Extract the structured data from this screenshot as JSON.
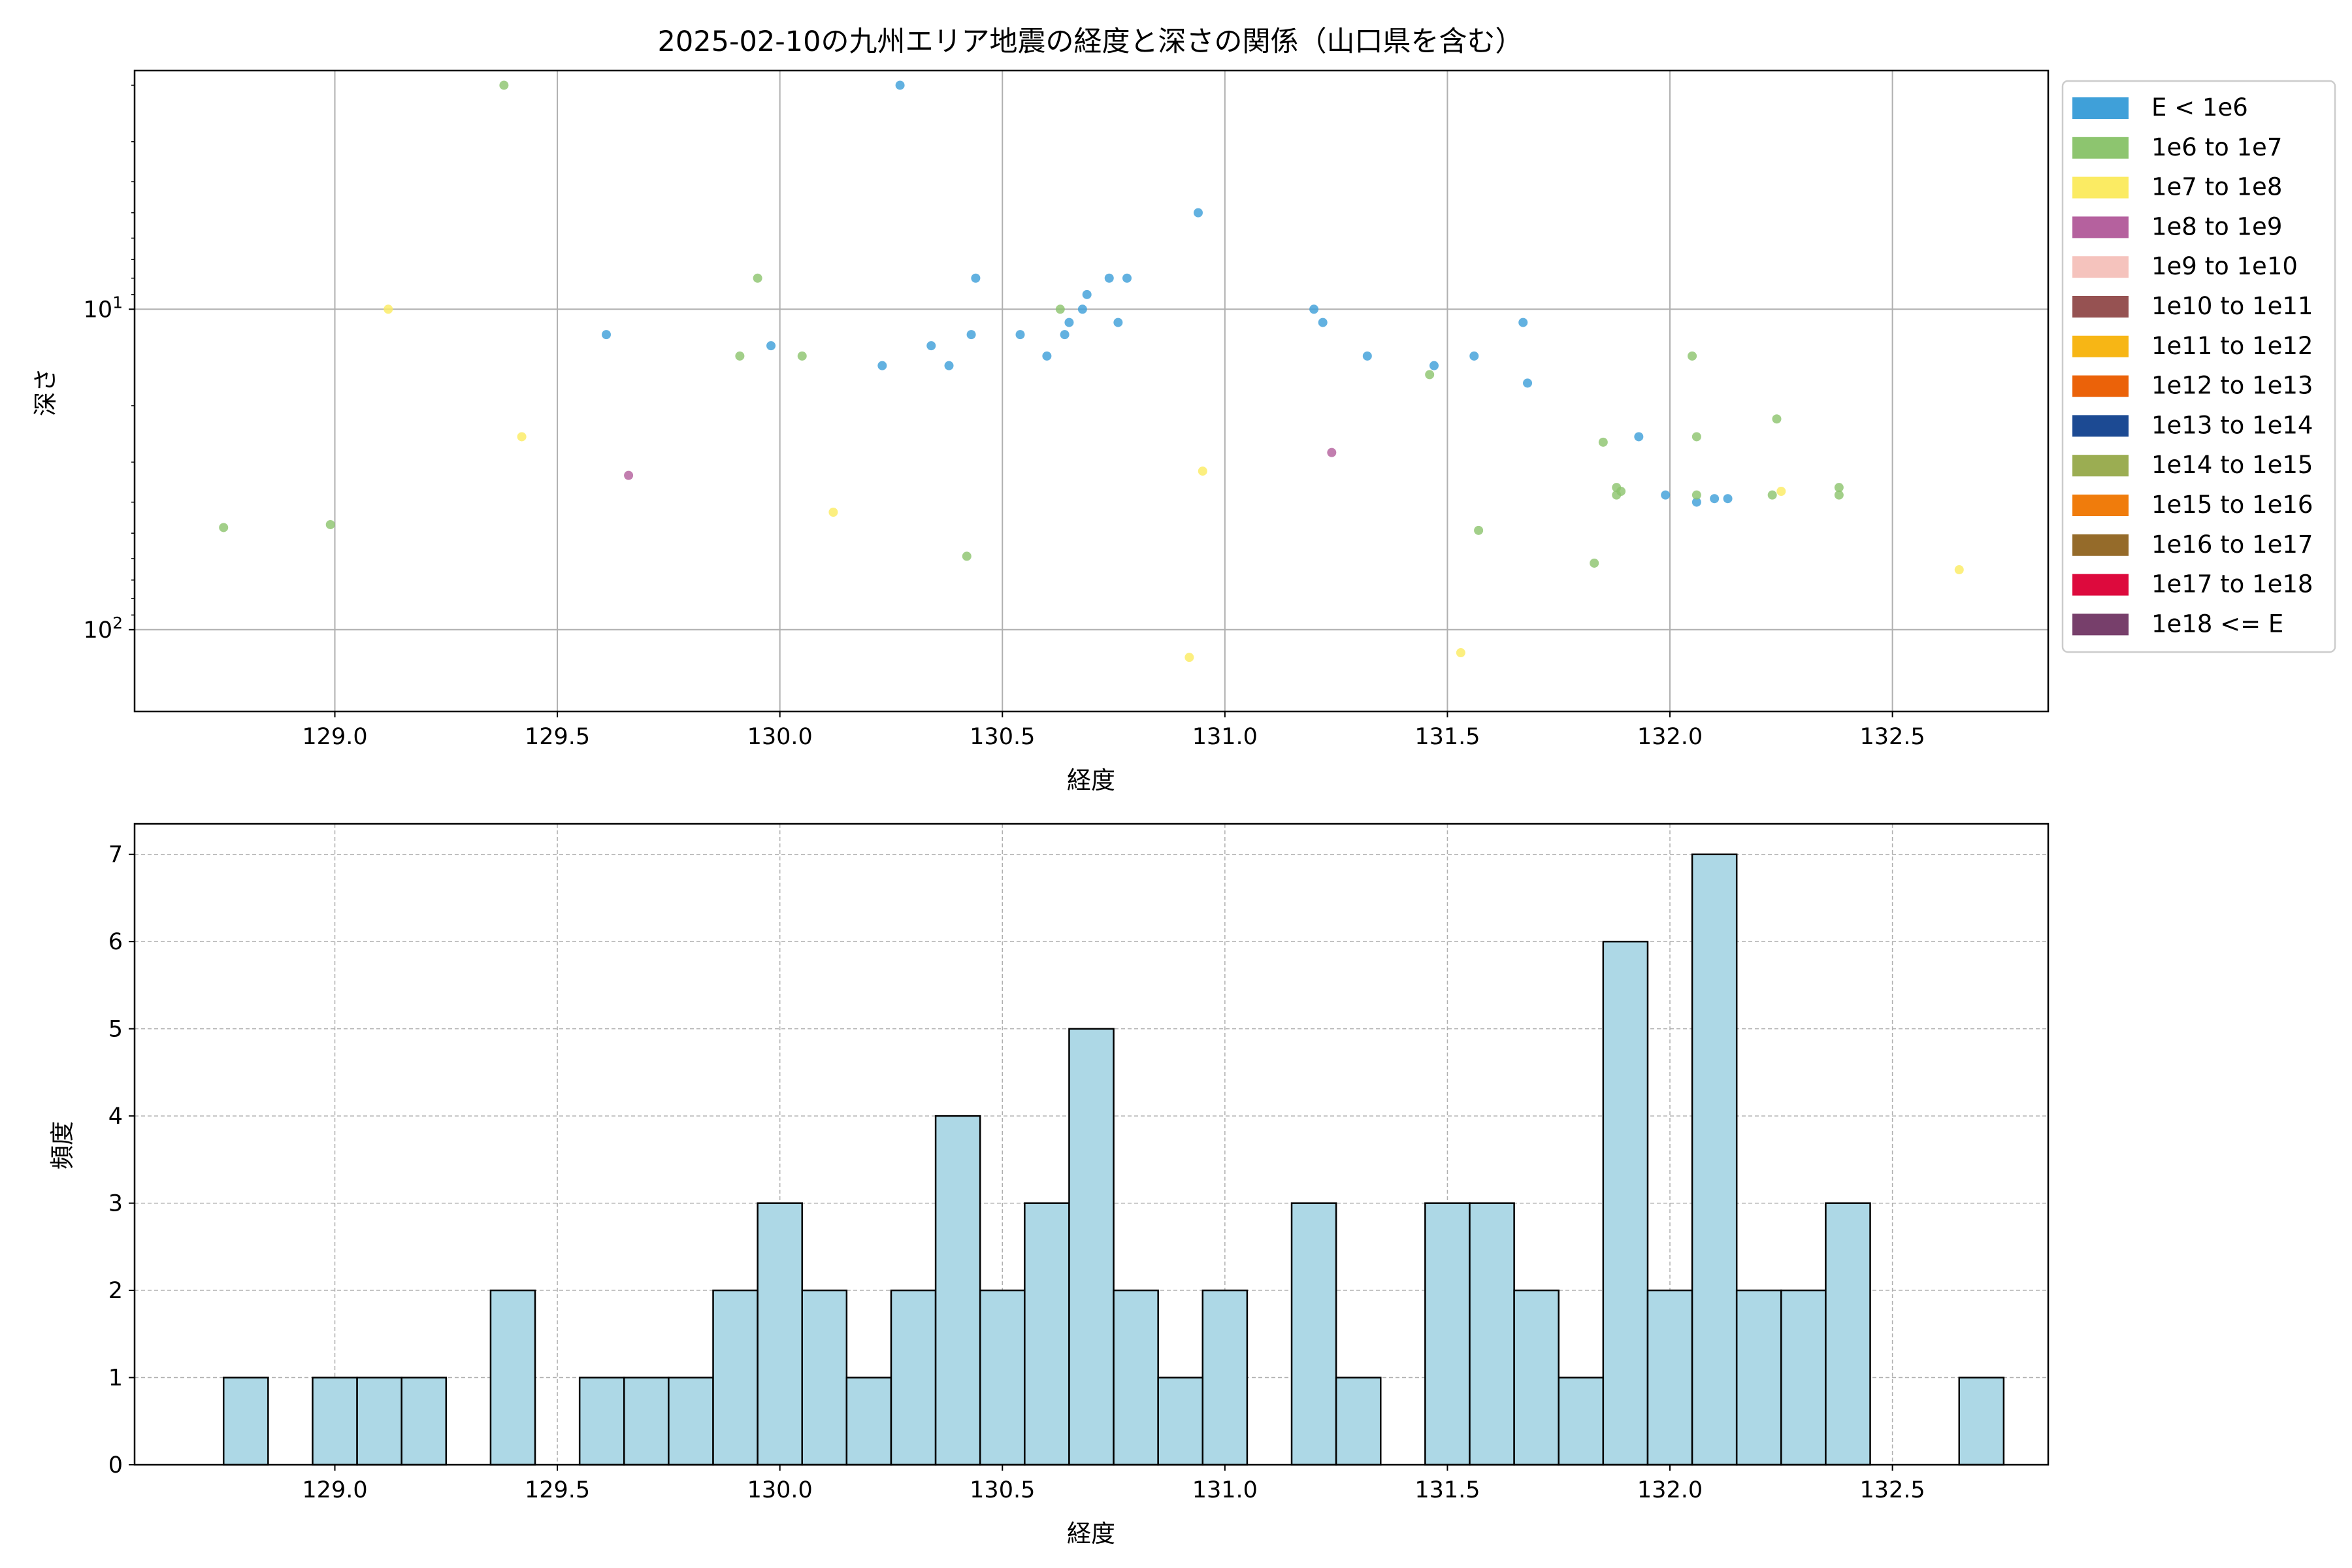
{
  "figure": {
    "title": "2025-02-10の九州エリア地震の経度と深さの関係（山口県を含む）"
  },
  "chart_data": [
    {
      "type": "scatter",
      "xlabel": "経度",
      "ylabel": "深さ",
      "xlim": [
        128.55,
        132.85
      ],
      "ylim": [
        1.8,
        180
      ],
      "y_scale": "log",
      "y_inverted": true,
      "grid": true,
      "x_ticks": [
        129.0,
        129.5,
        130.0,
        130.5,
        131.0,
        131.5,
        132.0,
        132.5
      ],
      "x_tick_labels": [
        "129.0",
        "129.5",
        "130.0",
        "130.5",
        "131.0",
        "131.5",
        "132.0",
        "132.5"
      ],
      "y_ticks": [
        10,
        100
      ],
      "y_tick_labels": [
        {
          "base": "10",
          "exp": "1"
        },
        {
          "base": "10",
          "exp": "2"
        }
      ],
      "legend": {
        "placement": "outside-right",
        "entries": [
          {
            "label": "E < 1e6",
            "color": "#3fa0d9"
          },
          {
            "label": "1e6 to 1e7",
            "color": "#8dc56f"
          },
          {
            "label": "1e7 to 1e8",
            "color": "#fbeb63"
          },
          {
            "label": "1e8 to 1e9",
            "color": "#b5619e"
          },
          {
            "label": "1e9 to 1e10",
            "color": "#f5c3bd"
          },
          {
            "label": "1e10 to 1e11",
            "color": "#965252"
          },
          {
            "label": "1e11 to 1e12",
            "color": "#f7b615"
          },
          {
            "label": "1e12 to 1e13",
            "color": "#eb6209"
          },
          {
            "label": "1e13 to 1e14",
            "color": "#1c4a93"
          },
          {
            "label": "1e14 to 1e15",
            "color": "#9bad52"
          },
          {
            "label": "1e15 to 1e16",
            "color": "#f07c0c"
          },
          {
            "label": "1e16 to 1e17",
            "color": "#956b2a"
          },
          {
            "label": "1e17 to 1e18",
            "color": "#dd0a3d"
          },
          {
            "label": "1e18 <= E",
            "color": "#773f6b"
          }
        ]
      },
      "points": [
        {
          "x": 130.27,
          "y": 2,
          "c": 0
        },
        {
          "x": 130.94,
          "y": 5,
          "c": 0
        },
        {
          "x": 130.44,
          "y": 8,
          "c": 0
        },
        {
          "x": 130.74,
          "y": 8,
          "c": 0
        },
        {
          "x": 130.78,
          "y": 8,
          "c": 0
        },
        {
          "x": 130.69,
          "y": 9,
          "c": 0
        },
        {
          "x": 130.68,
          "y": 10,
          "c": 0
        },
        {
          "x": 131.2,
          "y": 10,
          "c": 0
        },
        {
          "x": 130.65,
          "y": 11,
          "c": 0
        },
        {
          "x": 130.76,
          "y": 11,
          "c": 0
        },
        {
          "x": 131.22,
          "y": 11,
          "c": 0
        },
        {
          "x": 131.67,
          "y": 11,
          "c": 0
        },
        {
          "x": 129.61,
          "y": 12,
          "c": 0
        },
        {
          "x": 130.43,
          "y": 12,
          "c": 0
        },
        {
          "x": 130.54,
          "y": 12,
          "c": 0
        },
        {
          "x": 130.64,
          "y": 12,
          "c": 0
        },
        {
          "x": 129.98,
          "y": 13,
          "c": 0
        },
        {
          "x": 130.34,
          "y": 13,
          "c": 0
        },
        {
          "x": 130.6,
          "y": 14,
          "c": 0
        },
        {
          "x": 131.32,
          "y": 14,
          "c": 0
        },
        {
          "x": 131.56,
          "y": 14,
          "c": 0
        },
        {
          "x": 130.23,
          "y": 15,
          "c": 0
        },
        {
          "x": 130.38,
          "y": 15,
          "c": 0
        },
        {
          "x": 131.47,
          "y": 15,
          "c": 0
        },
        {
          "x": 131.68,
          "y": 17,
          "c": 0
        },
        {
          "x": 131.93,
          "y": 25,
          "c": 0
        },
        {
          "x": 131.99,
          "y": 38,
          "c": 0
        },
        {
          "x": 132.1,
          "y": 39,
          "c": 0
        },
        {
          "x": 132.13,
          "y": 39,
          "c": 0
        },
        {
          "x": 132.06,
          "y": 40,
          "c": 0
        },
        {
          "x": 129.38,
          "y": 2,
          "c": 1
        },
        {
          "x": 129.95,
          "y": 8,
          "c": 1
        },
        {
          "x": 130.63,
          "y": 10,
          "c": 1
        },
        {
          "x": 129.91,
          "y": 14,
          "c": 1
        },
        {
          "x": 130.05,
          "y": 14,
          "c": 1
        },
        {
          "x": 132.05,
          "y": 14,
          "c": 1
        },
        {
          "x": 131.46,
          "y": 16,
          "c": 1
        },
        {
          "x": 132.24,
          "y": 22,
          "c": 1
        },
        {
          "x": 131.85,
          "y": 26,
          "c": 1
        },
        {
          "x": 132.06,
          "y": 25,
          "c": 1
        },
        {
          "x": 131.88,
          "y": 36,
          "c": 1
        },
        {
          "x": 131.89,
          "y": 37,
          "c": 1
        },
        {
          "x": 131.88,
          "y": 38,
          "c": 1
        },
        {
          "x": 132.06,
          "y": 38,
          "c": 1
        },
        {
          "x": 132.38,
          "y": 36,
          "c": 1
        },
        {
          "x": 132.38,
          "y": 38,
          "c": 1
        },
        {
          "x": 132.23,
          "y": 38,
          "c": 1
        },
        {
          "x": 131.57,
          "y": 49,
          "c": 1
        },
        {
          "x": 128.75,
          "y": 48,
          "c": 1
        },
        {
          "x": 128.99,
          "y": 47,
          "c": 1
        },
        {
          "x": 130.42,
          "y": 59,
          "c": 1
        },
        {
          "x": 131.83,
          "y": 62,
          "c": 1
        },
        {
          "x": 129.12,
          "y": 10,
          "c": 2
        },
        {
          "x": 129.42,
          "y": 25,
          "c": 2
        },
        {
          "x": 130.95,
          "y": 32,
          "c": 2
        },
        {
          "x": 130.12,
          "y": 43,
          "c": 2
        },
        {
          "x": 132.25,
          "y": 37,
          "c": 2
        },
        {
          "x": 132.65,
          "y": 65,
          "c": 2
        },
        {
          "x": 130.92,
          "y": 122,
          "c": 2
        },
        {
          "x": 131.53,
          "y": 118,
          "c": 2
        },
        {
          "x": 129.66,
          "y": 33,
          "c": 3
        },
        {
          "x": 131.24,
          "y": 28,
          "c": 3
        }
      ]
    },
    {
      "type": "bar",
      "subtype": "histogram",
      "xlabel": "経度",
      "ylabel": "頻度",
      "xlim": [
        128.55,
        132.85
      ],
      "ylim": [
        0,
        7.35
      ],
      "grid": true,
      "bar_color": "#add8e6",
      "x_ticks": [
        129.0,
        129.5,
        130.0,
        130.5,
        131.0,
        131.5,
        132.0,
        132.5
      ],
      "x_tick_labels": [
        "129.0",
        "129.5",
        "130.0",
        "130.5",
        "131.0",
        "131.5",
        "132.0",
        "132.5"
      ],
      "y_ticks": [
        0,
        1,
        2,
        3,
        4,
        5,
        6,
        7
      ],
      "y_tick_labels": [
        "0",
        "1",
        "2",
        "3",
        "4",
        "5",
        "6",
        "7"
      ],
      "bin_start": 128.75,
      "bin_width": 0.1,
      "counts": [
        1,
        0,
        1,
        1,
        1,
        0,
        2,
        0,
        1,
        1,
        1,
        2,
        3,
        2,
        1,
        2,
        4,
        2,
        3,
        5,
        2,
        1,
        2,
        0,
        3,
        1,
        0,
        3,
        3,
        2,
        1,
        6,
        2,
        7,
        2,
        2,
        3,
        0,
        0,
        1
      ]
    }
  ]
}
